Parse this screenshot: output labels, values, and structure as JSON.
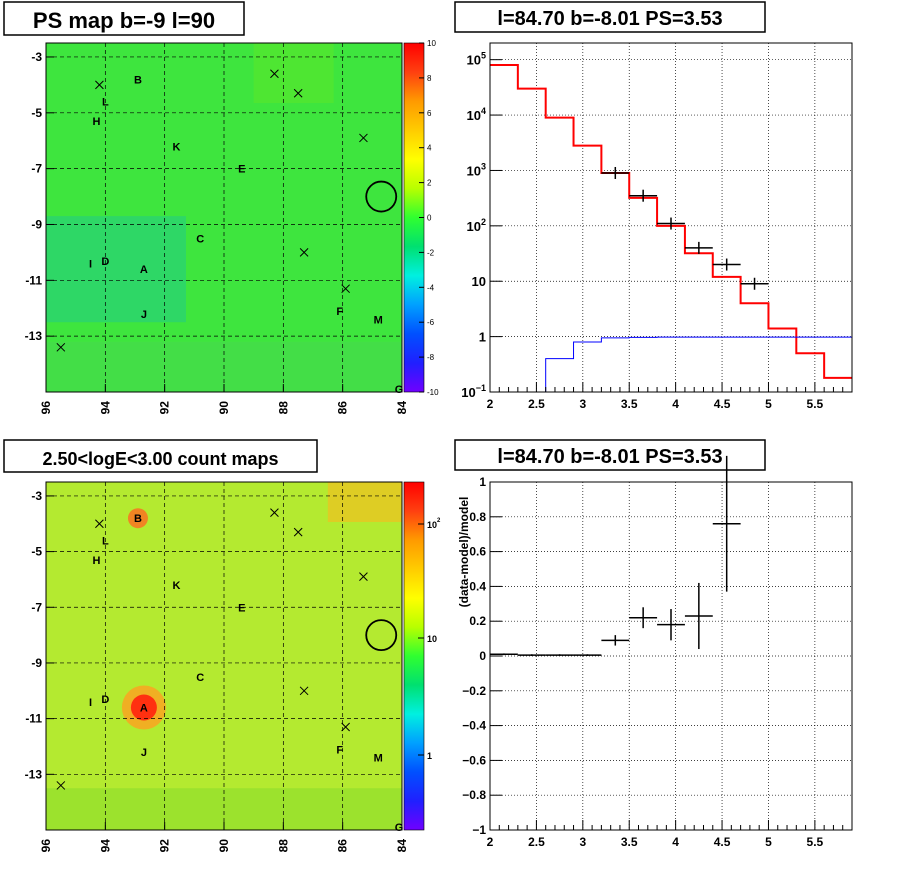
{
  "panels": {
    "ps_map": {
      "title": "PS map b=-9 l=90",
      "x_ticks": [
        "96",
        "94",
        "92",
        "90",
        "88",
        "86",
        "84"
      ],
      "y_ticks": [
        "-3",
        "-5",
        "-7",
        "-9",
        "-11",
        "-13"
      ],
      "z_ticks": [
        "10",
        "8",
        "6",
        "4",
        "2",
        "0",
        "-2",
        "-4",
        "-6",
        "-8",
        "-10"
      ]
    },
    "spectrum": {
      "title": "l=84.70 b=-8.01 PS=3.53",
      "x_ticks": [
        "2",
        "2.5",
        "3",
        "3.5",
        "4",
        "4.5",
        "5",
        "5.5"
      ],
      "y_ticks": [
        {
          "base": "10",
          "exp": "5"
        },
        {
          "base": "10",
          "exp": "4"
        },
        {
          "base": "10",
          "exp": "3"
        },
        {
          "base": "10",
          "exp": "2"
        },
        {
          "base": "10",
          "exp": ""
        },
        {
          "base": "1",
          "exp": ""
        },
        {
          "base": "10",
          "exp": "−1"
        }
      ]
    },
    "count_map": {
      "title": "2.50<logE<3.00 count maps",
      "x_ticks": [
        "96",
        "94",
        "92",
        "90",
        "88",
        "86",
        "84"
      ],
      "y_ticks": [
        "-3",
        "-5",
        "-7",
        "-9",
        "-11",
        "-13"
      ],
      "z_ticks": [
        {
          "base": "10",
          "exp": "2"
        },
        {
          "base": "10",
          "exp": ""
        },
        {
          "base": "1",
          "exp": ""
        }
      ]
    },
    "residual": {
      "title": "l=84.70 b=-8.01 PS=3.53",
      "ylabel": "(data-model)/model",
      "x_ticks": [
        "2",
        "2.5",
        "3",
        "3.5",
        "4",
        "4.5",
        "5",
        "5.5"
      ],
      "y_ticks": [
        "1",
        "0.8",
        "0.6",
        "0.4",
        "0.2",
        "0",
        "−0.2",
        "−0.4",
        "−0.6",
        "−0.8",
        "−1"
      ]
    }
  },
  "sources": [
    {
      "label": "B",
      "l": 92.9,
      "b": -3.8
    },
    {
      "label": "L",
      "l": 94.0,
      "b": -4.6
    },
    {
      "label": "H",
      "l": 94.3,
      "b": -5.3
    },
    {
      "label": "K",
      "l": 91.6,
      "b": -6.2
    },
    {
      "label": "E",
      "l": 89.4,
      "b": -7.0
    },
    {
      "label": "C",
      "l": 90.8,
      "b": -9.5
    },
    {
      "label": "I",
      "l": 94.5,
      "b": -10.4
    },
    {
      "label": "D",
      "l": 94.0,
      "b": -10.3
    },
    {
      "label": "A",
      "l": 92.7,
      "b": -10.6
    },
    {
      "label": "J",
      "l": 92.7,
      "b": -12.2
    },
    {
      "label": "F",
      "l": 86.1,
      "b": -12.1
    },
    {
      "label": "M",
      "l": 84.8,
      "b": -12.4
    },
    {
      "label": "G",
      "l": 84.1,
      "b": -14.9
    }
  ],
  "crosses": [
    {
      "l": 94.2,
      "b": -4.0
    },
    {
      "l": 88.3,
      "b": -3.6
    },
    {
      "l": 87.5,
      "b": -4.3
    },
    {
      "l": 85.3,
      "b": -5.9
    },
    {
      "l": 87.3,
      "b": -10.0
    },
    {
      "l": 85.9,
      "b": -11.3
    },
    {
      "l": 95.5,
      "b": -13.4
    }
  ],
  "circle": {
    "l": 84.7,
    "b": -8.0
  },
  "chart_data": [
    {
      "type": "heatmap",
      "title": "PS map b=-9 l=90",
      "x_axis": "l (deg), reversed",
      "xlim": [
        96,
        84
      ],
      "y_axis": "b (deg)",
      "ylim": [
        -15,
        -2.5
      ],
      "z_range": [
        -10,
        10
      ],
      "colors": {
        "background": "#3ee53e",
        "left_band": "#28d277"
      }
    },
    {
      "type": "line",
      "title": "l=84.70 b=-8.01 PS=3.53",
      "x_range": [
        2,
        5.9
      ],
      "y_range": [
        0.1,
        200000
      ],
      "y_scale": "log",
      "grid": true,
      "series": [
        {
          "style": "step",
          "color": "#ff0000",
          "edges": [
            2.0,
            2.3,
            2.6,
            2.9,
            3.2,
            3.5,
            3.8,
            4.1,
            4.4,
            4.7,
            5.0,
            5.3,
            5.6,
            5.9
          ],
          "values": [
            80000,
            30000,
            9000,
            2800,
            900,
            320,
            100,
            32,
            12,
            4,
            1.4,
            0.5,
            0.18
          ]
        },
        {
          "style": "step",
          "color": "#0000ff",
          "edges": [
            2.0,
            2.3,
            2.6,
            2.9,
            3.2,
            3.5,
            3.8,
            4.1,
            4.4,
            4.7,
            5.0,
            5.3,
            5.6,
            5.9
          ],
          "values": [
            0.1,
            0.1,
            0.4,
            0.8,
            0.95,
            0.97,
            0.98,
            0.98,
            0.98,
            0.98,
            0.98,
            0.98,
            0.98
          ]
        },
        {
          "style": "errorbar",
          "color": "#000000",
          "x": [
            3.35,
            3.65,
            3.95,
            4.25,
            4.55,
            4.85
          ],
          "y": [
            900,
            350,
            110,
            40,
            20,
            9
          ],
          "xerr": 0.15
        }
      ]
    },
    {
      "type": "heatmap",
      "title": "2.50<logE<3.00 count maps",
      "x_axis": "l (deg), reversed",
      "xlim": [
        96,
        84
      ],
      "y_axis": "b (deg)",
      "ylim": [
        -15,
        -2.5
      ],
      "z_scale": "log",
      "colors": {
        "background": "#b4ea30",
        "hot": "#ff3010"
      }
    },
    {
      "type": "scatter",
      "title": "l=84.70 b=-8.01 PS=3.53",
      "ylabel": "(data-model)/model",
      "xlim": [
        2,
        5.9
      ],
      "ylim": [
        -1,
        1
      ],
      "grid": true,
      "x": [
        2.15,
        2.45,
        2.75,
        3.05,
        3.35,
        3.65,
        3.95,
        4.25,
        4.55
      ],
      "y": [
        0.01,
        0.005,
        0.005,
        0.005,
        0.09,
        0.22,
        0.18,
        0.23,
        0.76
      ],
      "yerr": [
        0.005,
        0.005,
        0.005,
        0.005,
        0.03,
        0.06,
        0.09,
        0.19,
        0.39
      ],
      "xerr": 0.15
    }
  ]
}
